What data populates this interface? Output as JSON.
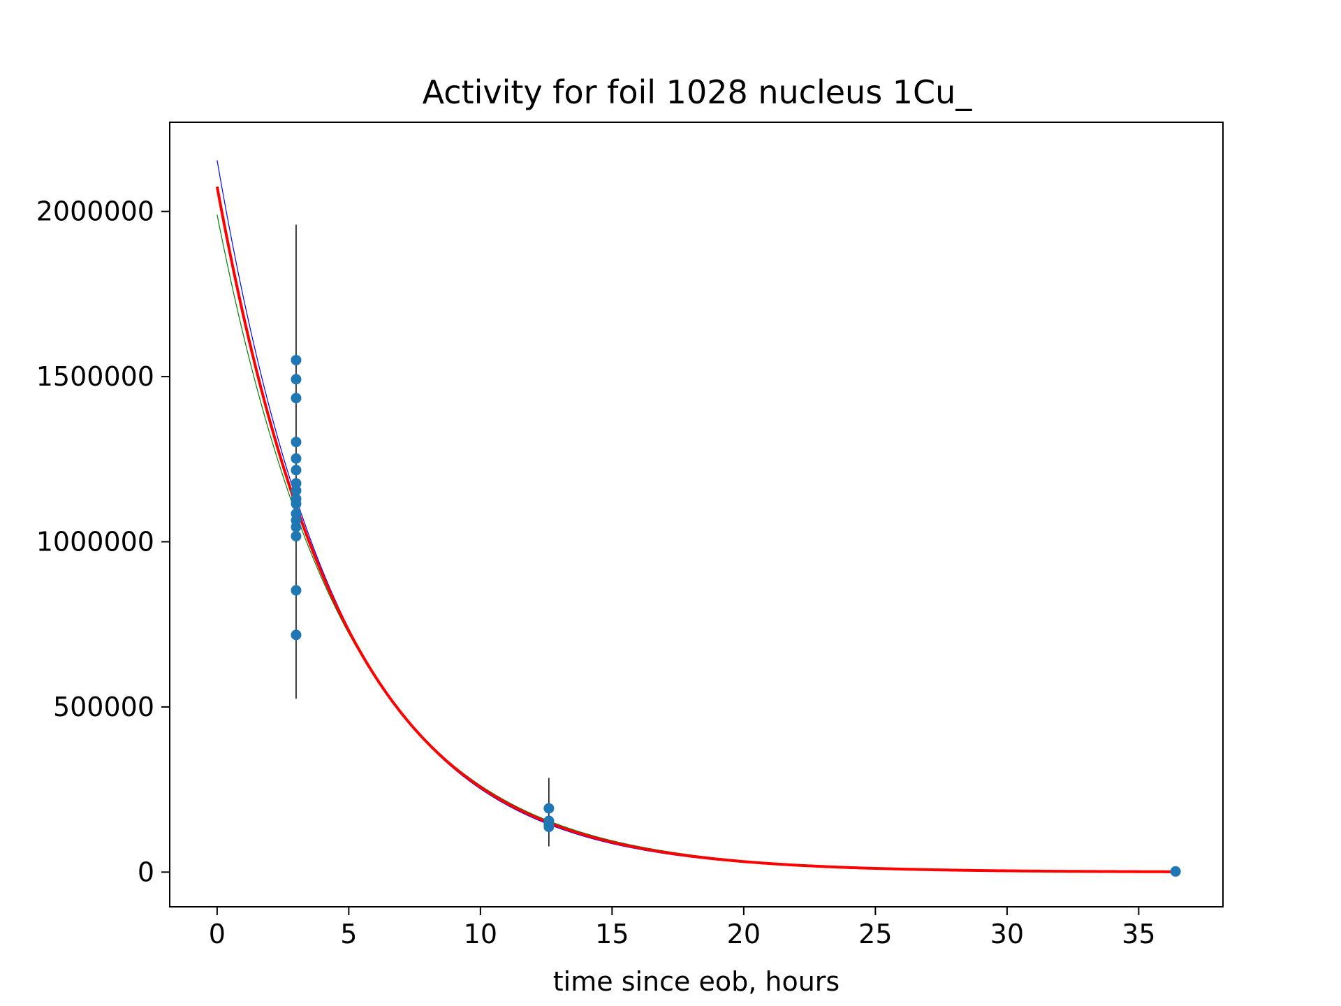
{
  "chart_data": {
    "type": "scatter",
    "title": "Activity for foil 1028 nucleus 1Cu_",
    "xlabel": "time since eob, hours",
    "ylabel": "",
    "xlim": [
      -1.8,
      38.2
    ],
    "ylim": [
      -105000,
      2270000
    ],
    "grid": false,
    "legend": "none",
    "x_ticks": [
      {
        "value": 0,
        "label": "0"
      },
      {
        "value": 5,
        "label": "5"
      },
      {
        "value": 10,
        "label": "10"
      },
      {
        "value": 15,
        "label": "15"
      },
      {
        "value": 20,
        "label": "20"
      },
      {
        "value": 25,
        "label": "25"
      },
      {
        "value": 30,
        "label": "30"
      },
      {
        "value": 35,
        "label": "35"
      }
    ],
    "y_ticks": [
      {
        "value": 0,
        "label": "0"
      },
      {
        "value": 500000,
        "label": "500000"
      },
      {
        "value": 1000000,
        "label": "1000000"
      },
      {
        "value": 1500000,
        "label": "1500000"
      },
      {
        "value": 2000000,
        "label": "2000000"
      }
    ],
    "points": {
      "color": "#1f77b4",
      "x": [
        3.0,
        3.0,
        3.0,
        3.0,
        3.0,
        3.0,
        3.0,
        3.0,
        3.0,
        3.0,
        3.0,
        3.0,
        3.0,
        3.0,
        3.0,
        3.0,
        12.6,
        12.6,
        12.6,
        12.6,
        36.4
      ],
      "y": [
        1550000,
        1492000,
        1435000,
        1302000,
        1252000,
        1217000,
        1177000,
        1155000,
        1130000,
        1115000,
        1085000,
        1065000,
        1045000,
        1017000,
        853000,
        718000,
        193000,
        155000,
        145000,
        137000,
        2000
      ]
    },
    "error_bars": [
      {
        "x": 3.0,
        "ymin": 525000,
        "ymax": 1960000
      },
      {
        "x": 12.6,
        "ymin": 78000,
        "ymax": 285000
      }
    ],
    "fit_curves": [
      {
        "color": "#0000ff",
        "A0": 2155000,
        "half_life_h": 3.23,
        "width": 1.2
      },
      {
        "color": "#008000",
        "A0": 1990000,
        "half_life_h": 3.42,
        "width": 1.2
      },
      {
        "color": "#ff0000",
        "A0": 2075000,
        "half_life_h": 3.32,
        "width": 4
      }
    ]
  }
}
